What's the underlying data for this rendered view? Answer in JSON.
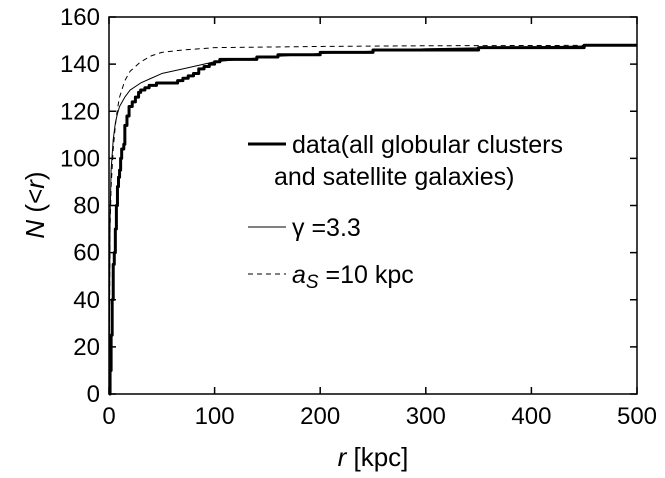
{
  "chart_data": {
    "type": "line",
    "title": "",
    "xlabel": {
      "var": "r",
      "unit": " [kpc]"
    },
    "ylabel": {
      "var": "N",
      "rest": " (<",
      "var2": "r",
      "close": ")"
    },
    "xlim": [
      0,
      500
    ],
    "ylim": [
      0,
      160
    ],
    "xticks": [
      0,
      100,
      200,
      300,
      400,
      500
    ],
    "yticks": [
      0,
      20,
      40,
      60,
      80,
      100,
      120,
      140,
      160
    ],
    "grid": false,
    "legend_position": "right",
    "series": [
      {
        "style": "thick-solid",
        "step": true,
        "legend": {
          "line1": "data(all globular clusters",
          "line2": "and satellite galaxies)"
        },
        "points": [
          [
            0,
            0
          ],
          [
            1,
            10
          ],
          [
            2,
            25
          ],
          [
            3,
            40
          ],
          [
            4,
            55
          ],
          [
            5,
            60
          ],
          [
            6,
            70
          ],
          [
            7,
            80
          ],
          [
            8,
            88
          ],
          [
            9,
            92
          ],
          [
            10,
            95
          ],
          [
            11,
            100
          ],
          [
            12,
            104
          ],
          [
            14,
            106
          ],
          [
            15,
            114
          ],
          [
            17,
            118
          ],
          [
            19,
            122
          ],
          [
            22,
            124
          ],
          [
            25,
            126
          ],
          [
            28,
            128
          ],
          [
            30,
            129
          ],
          [
            34,
            130
          ],
          [
            38,
            131
          ],
          [
            45,
            132
          ],
          [
            55,
            132
          ],
          [
            65,
            133
          ],
          [
            70,
            134
          ],
          [
            75,
            135
          ],
          [
            80,
            136
          ],
          [
            85,
            138
          ],
          [
            90,
            139
          ],
          [
            95,
            140
          ],
          [
            100,
            141
          ],
          [
            105,
            142
          ],
          [
            120,
            142
          ],
          [
            140,
            143
          ],
          [
            160,
            144
          ],
          [
            200,
            145
          ],
          [
            250,
            146
          ],
          [
            300,
            146
          ],
          [
            350,
            147
          ],
          [
            400,
            147
          ],
          [
            450,
            148
          ],
          [
            500,
            148
          ]
        ]
      },
      {
        "style": "thin-solid",
        "step": false,
        "legend": {
          "symbol": "γ",
          "value": " =3.3"
        },
        "points": [
          [
            0,
            0
          ],
          [
            1,
            75
          ],
          [
            2,
            95
          ],
          [
            4,
            108
          ],
          [
            6,
            115
          ],
          [
            8,
            119
          ],
          [
            10,
            122
          ],
          [
            15,
            126
          ],
          [
            20,
            129
          ],
          [
            30,
            132
          ],
          [
            40,
            134
          ],
          [
            50,
            136
          ],
          [
            70,
            138
          ],
          [
            100,
            141
          ],
          [
            150,
            143
          ],
          [
            200,
            144.5
          ],
          [
            300,
            146.5
          ],
          [
            400,
            147.3
          ],
          [
            500,
            148
          ]
        ]
      },
      {
        "style": "dashed",
        "step": false,
        "legend": {
          "symbol": "a",
          "sub": "S",
          "value": " =10 kpc"
        },
        "points": [
          [
            0,
            0
          ],
          [
            1,
            70
          ],
          [
            2,
            88
          ],
          [
            4,
            104
          ],
          [
            6,
            114
          ],
          [
            8,
            121
          ],
          [
            10,
            126
          ],
          [
            15,
            133
          ],
          [
            20,
            137
          ],
          [
            30,
            141
          ],
          [
            40,
            143.5
          ],
          [
            50,
            145
          ],
          [
            70,
            146
          ],
          [
            100,
            147
          ],
          [
            200,
            147.5
          ],
          [
            300,
            147.8
          ],
          [
            500,
            148
          ]
        ]
      }
    ]
  }
}
